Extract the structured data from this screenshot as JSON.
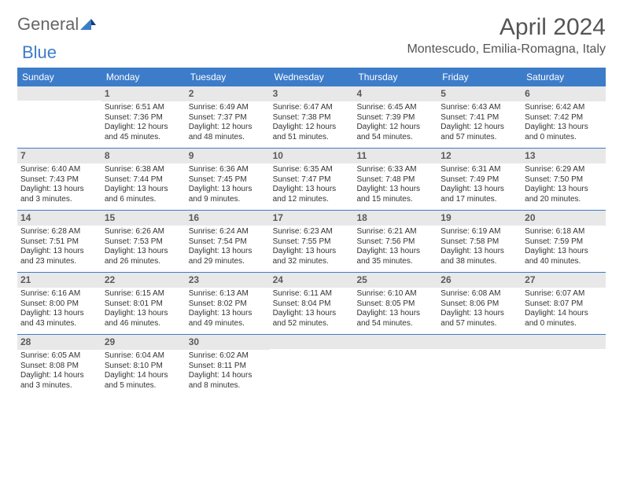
{
  "brand": {
    "part1": "General",
    "part2": "Blue"
  },
  "title": "April 2024",
  "location": "Montescudo, Emilia-Romagna, Italy",
  "colors": {
    "accent": "#3d7cc9",
    "header_bg": "#3d7cc9",
    "daynum_bg": "#e8e8e8",
    "text": "#333333"
  },
  "day_names": [
    "Sunday",
    "Monday",
    "Tuesday",
    "Wednesday",
    "Thursday",
    "Friday",
    "Saturday"
  ],
  "weeks": [
    [
      {
        "n": "",
        "sunrise": "",
        "sunset": "",
        "daylight": ""
      },
      {
        "n": "1",
        "sunrise": "Sunrise: 6:51 AM",
        "sunset": "Sunset: 7:36 PM",
        "daylight": "Daylight: 12 hours and 45 minutes."
      },
      {
        "n": "2",
        "sunrise": "Sunrise: 6:49 AM",
        "sunset": "Sunset: 7:37 PM",
        "daylight": "Daylight: 12 hours and 48 minutes."
      },
      {
        "n": "3",
        "sunrise": "Sunrise: 6:47 AM",
        "sunset": "Sunset: 7:38 PM",
        "daylight": "Daylight: 12 hours and 51 minutes."
      },
      {
        "n": "4",
        "sunrise": "Sunrise: 6:45 AM",
        "sunset": "Sunset: 7:39 PM",
        "daylight": "Daylight: 12 hours and 54 minutes."
      },
      {
        "n": "5",
        "sunrise": "Sunrise: 6:43 AM",
        "sunset": "Sunset: 7:41 PM",
        "daylight": "Daylight: 12 hours and 57 minutes."
      },
      {
        "n": "6",
        "sunrise": "Sunrise: 6:42 AM",
        "sunset": "Sunset: 7:42 PM",
        "daylight": "Daylight: 13 hours and 0 minutes."
      }
    ],
    [
      {
        "n": "7",
        "sunrise": "Sunrise: 6:40 AM",
        "sunset": "Sunset: 7:43 PM",
        "daylight": "Daylight: 13 hours and 3 minutes."
      },
      {
        "n": "8",
        "sunrise": "Sunrise: 6:38 AM",
        "sunset": "Sunset: 7:44 PM",
        "daylight": "Daylight: 13 hours and 6 minutes."
      },
      {
        "n": "9",
        "sunrise": "Sunrise: 6:36 AM",
        "sunset": "Sunset: 7:45 PM",
        "daylight": "Daylight: 13 hours and 9 minutes."
      },
      {
        "n": "10",
        "sunrise": "Sunrise: 6:35 AM",
        "sunset": "Sunset: 7:47 PM",
        "daylight": "Daylight: 13 hours and 12 minutes."
      },
      {
        "n": "11",
        "sunrise": "Sunrise: 6:33 AM",
        "sunset": "Sunset: 7:48 PM",
        "daylight": "Daylight: 13 hours and 15 minutes."
      },
      {
        "n": "12",
        "sunrise": "Sunrise: 6:31 AM",
        "sunset": "Sunset: 7:49 PM",
        "daylight": "Daylight: 13 hours and 17 minutes."
      },
      {
        "n": "13",
        "sunrise": "Sunrise: 6:29 AM",
        "sunset": "Sunset: 7:50 PM",
        "daylight": "Daylight: 13 hours and 20 minutes."
      }
    ],
    [
      {
        "n": "14",
        "sunrise": "Sunrise: 6:28 AM",
        "sunset": "Sunset: 7:51 PM",
        "daylight": "Daylight: 13 hours and 23 minutes."
      },
      {
        "n": "15",
        "sunrise": "Sunrise: 6:26 AM",
        "sunset": "Sunset: 7:53 PM",
        "daylight": "Daylight: 13 hours and 26 minutes."
      },
      {
        "n": "16",
        "sunrise": "Sunrise: 6:24 AM",
        "sunset": "Sunset: 7:54 PM",
        "daylight": "Daylight: 13 hours and 29 minutes."
      },
      {
        "n": "17",
        "sunrise": "Sunrise: 6:23 AM",
        "sunset": "Sunset: 7:55 PM",
        "daylight": "Daylight: 13 hours and 32 minutes."
      },
      {
        "n": "18",
        "sunrise": "Sunrise: 6:21 AM",
        "sunset": "Sunset: 7:56 PM",
        "daylight": "Daylight: 13 hours and 35 minutes."
      },
      {
        "n": "19",
        "sunrise": "Sunrise: 6:19 AM",
        "sunset": "Sunset: 7:58 PM",
        "daylight": "Daylight: 13 hours and 38 minutes."
      },
      {
        "n": "20",
        "sunrise": "Sunrise: 6:18 AM",
        "sunset": "Sunset: 7:59 PM",
        "daylight": "Daylight: 13 hours and 40 minutes."
      }
    ],
    [
      {
        "n": "21",
        "sunrise": "Sunrise: 6:16 AM",
        "sunset": "Sunset: 8:00 PM",
        "daylight": "Daylight: 13 hours and 43 minutes."
      },
      {
        "n": "22",
        "sunrise": "Sunrise: 6:15 AM",
        "sunset": "Sunset: 8:01 PM",
        "daylight": "Daylight: 13 hours and 46 minutes."
      },
      {
        "n": "23",
        "sunrise": "Sunrise: 6:13 AM",
        "sunset": "Sunset: 8:02 PM",
        "daylight": "Daylight: 13 hours and 49 minutes."
      },
      {
        "n": "24",
        "sunrise": "Sunrise: 6:11 AM",
        "sunset": "Sunset: 8:04 PM",
        "daylight": "Daylight: 13 hours and 52 minutes."
      },
      {
        "n": "25",
        "sunrise": "Sunrise: 6:10 AM",
        "sunset": "Sunset: 8:05 PM",
        "daylight": "Daylight: 13 hours and 54 minutes."
      },
      {
        "n": "26",
        "sunrise": "Sunrise: 6:08 AM",
        "sunset": "Sunset: 8:06 PM",
        "daylight": "Daylight: 13 hours and 57 minutes."
      },
      {
        "n": "27",
        "sunrise": "Sunrise: 6:07 AM",
        "sunset": "Sunset: 8:07 PM",
        "daylight": "Daylight: 14 hours and 0 minutes."
      }
    ],
    [
      {
        "n": "28",
        "sunrise": "Sunrise: 6:05 AM",
        "sunset": "Sunset: 8:08 PM",
        "daylight": "Daylight: 14 hours and 3 minutes."
      },
      {
        "n": "29",
        "sunrise": "Sunrise: 6:04 AM",
        "sunset": "Sunset: 8:10 PM",
        "daylight": "Daylight: 14 hours and 5 minutes."
      },
      {
        "n": "30",
        "sunrise": "Sunrise: 6:02 AM",
        "sunset": "Sunset: 8:11 PM",
        "daylight": "Daylight: 14 hours and 8 minutes."
      },
      {
        "n": "",
        "sunrise": "",
        "sunset": "",
        "daylight": ""
      },
      {
        "n": "",
        "sunrise": "",
        "sunset": "",
        "daylight": ""
      },
      {
        "n": "",
        "sunrise": "",
        "sunset": "",
        "daylight": ""
      },
      {
        "n": "",
        "sunrise": "",
        "sunset": "",
        "daylight": ""
      }
    ]
  ]
}
